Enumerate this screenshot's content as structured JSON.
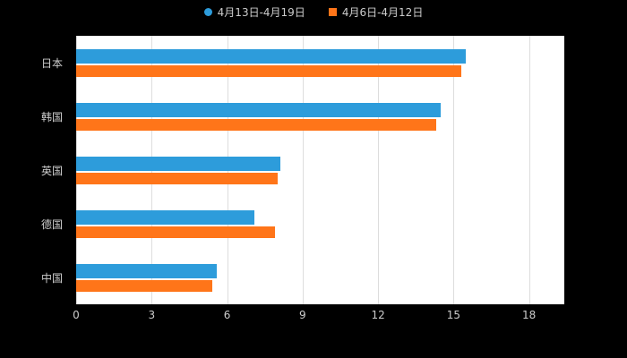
{
  "chart_data": {
    "type": "bar",
    "orientation": "horizontal",
    "title": "",
    "categories": [
      "日本",
      "韩国",
      "英国",
      "德国",
      "中国"
    ],
    "series": [
      {
        "name": "4月13日-4月19日",
        "color": "#2D9CDB",
        "marker": "circle",
        "values": [
          15.5,
          14.5,
          8.1,
          7.1,
          5.6
        ]
      },
      {
        "name": "4月6日-4月12日",
        "color": "#FF7519",
        "marker": "square",
        "values": [
          15.3,
          14.3,
          8.0,
          7.9,
          5.4
        ]
      }
    ],
    "x_ticks": [
      0,
      3,
      6,
      9,
      12,
      15,
      18
    ],
    "xlim": [
      0,
      19.4
    ],
    "grid": true,
    "legend_position": "top",
    "colors": {
      "background": "#000000",
      "plot_background": "#ffffff",
      "gridline": "#dddddd",
      "axis_text": "#cccccc"
    }
  }
}
